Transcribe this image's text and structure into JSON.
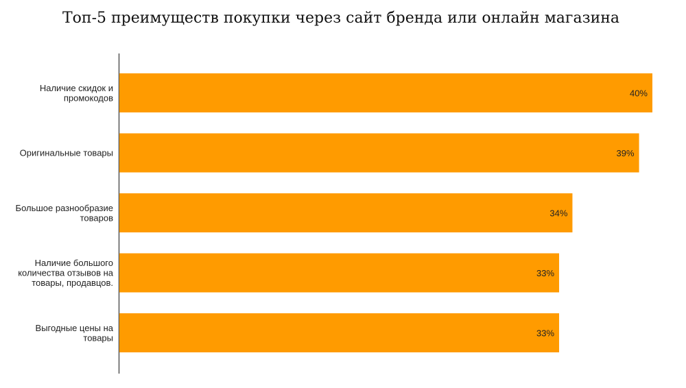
{
  "chart_data": {
    "type": "bar",
    "orientation": "horizontal",
    "title": "Топ-5 преимуществ покупки через сайт бренда или онлайн магазина",
    "categories": [
      [
        "Наличие скидок и",
        "промокодов"
      ],
      [
        "Оригинальные товары"
      ],
      [
        "Большое разнообразие",
        "товаров"
      ],
      [
        "Наличие большого",
        "количества отзывов на",
        "товары, продавцов."
      ],
      [
        "Выгодные цены на",
        "товары"
      ]
    ],
    "values": [
      40,
      39,
      34,
      33,
      33
    ],
    "value_labels": [
      "40%",
      "39%",
      "34%",
      "33%",
      "33%"
    ],
    "unit": "%",
    "xlim": [
      0,
      40
    ],
    "grid": false,
    "legend": "none",
    "bar_color": "#FF9B00",
    "axis_color": "#555555"
  }
}
